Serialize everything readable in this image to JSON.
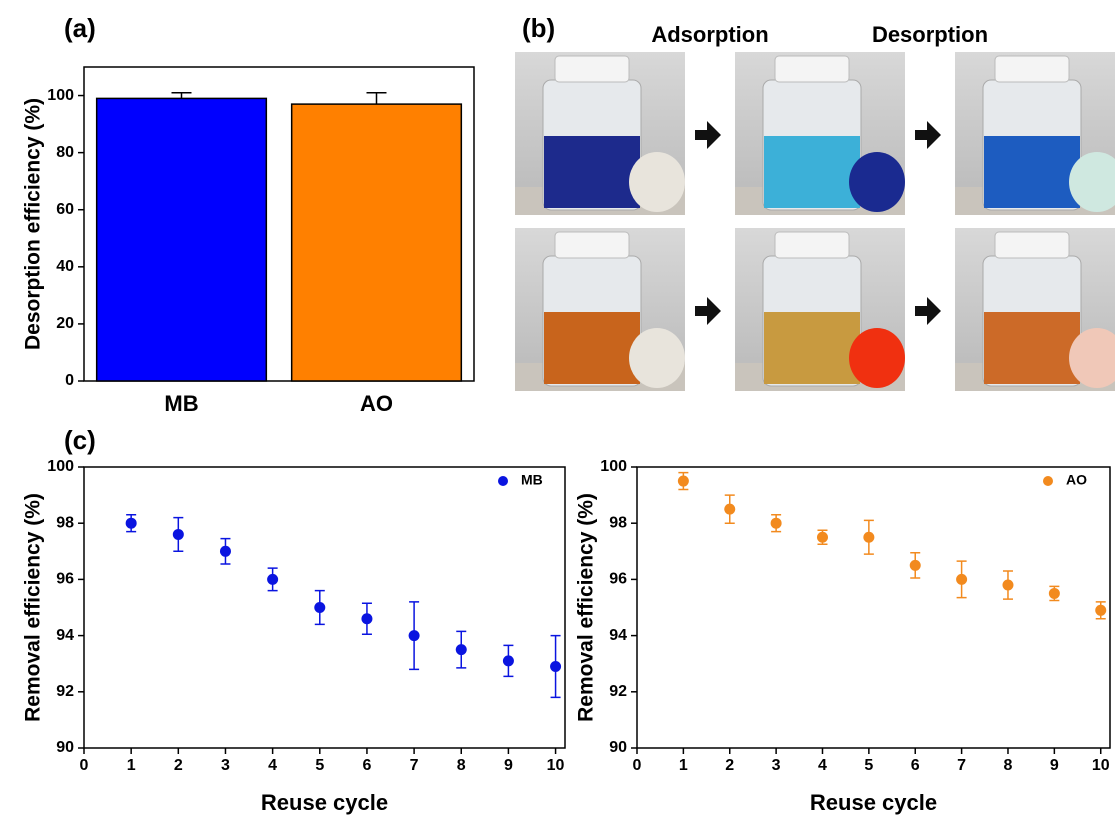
{
  "chart_data": [
    {
      "type": "bar",
      "label": "(a)",
      "y_label": "Desorption efficiency (%)",
      "categories": [
        "MB",
        "AO"
      ],
      "values": [
        99,
        97
      ],
      "errors": [
        2,
        4
      ],
      "colors": [
        "#0000ff",
        "#ff8000"
      ],
      "ylim": [
        0,
        110
      ],
      "yticks": [
        0,
        20,
        40,
        60,
        80,
        100
      ]
    },
    {
      "type": "scatter",
      "label": "(c)",
      "x_label": "Reuse cycle",
      "y_label": "Removal efficiency (%)",
      "x": [
        1,
        2,
        3,
        4,
        5,
        6,
        7,
        8,
        9,
        10
      ],
      "series": [
        {
          "name": "MB",
          "color": "#0a14e0",
          "values": [
            98,
            97.6,
            97,
            96,
            95,
            94.6,
            94,
            93.5,
            93.1,
            92.9
          ],
          "errors": [
            0.3,
            0.6,
            0.45,
            0.4,
            0.6,
            0.55,
            1.2,
            0.65,
            0.55,
            1.1
          ]
        }
      ],
      "xlim": [
        0,
        10.2
      ],
      "ylim": [
        90,
        100
      ],
      "xticks": [
        0,
        1,
        2,
        3,
        4,
        5,
        6,
        7,
        8,
        9,
        10
      ],
      "yticks": [
        90,
        92,
        94,
        96,
        98,
        100
      ],
      "legend": "upper right"
    },
    {
      "type": "scatter",
      "x_label": "Reuse cycle",
      "y_label": "Removal efficiency (%)",
      "x": [
        1,
        2,
        3,
        4,
        5,
        6,
        7,
        8,
        9,
        10
      ],
      "series": [
        {
          "name": "AO",
          "color": "#f28a1e",
          "values": [
            99.5,
            98.5,
            98,
            97.5,
            97.5,
            96.5,
            96,
            95.8,
            95.5,
            94.9
          ],
          "errors": [
            0.3,
            0.5,
            0.3,
            0.25,
            0.6,
            0.45,
            0.65,
            0.5,
            0.25,
            0.3
          ]
        }
      ],
      "xlim": [
        0,
        10.2
      ],
      "ylim": [
        90,
        100
      ],
      "xticks": [
        0,
        1,
        2,
        3,
        4,
        5,
        6,
        7,
        8,
        9,
        10
      ],
      "yticks": [
        90,
        92,
        94,
        96,
        98,
        100
      ],
      "legend": "upper right"
    }
  ],
  "photo_panel": {
    "label": "(b)",
    "headers": [
      "Adsorption",
      "Desorption"
    ]
  }
}
